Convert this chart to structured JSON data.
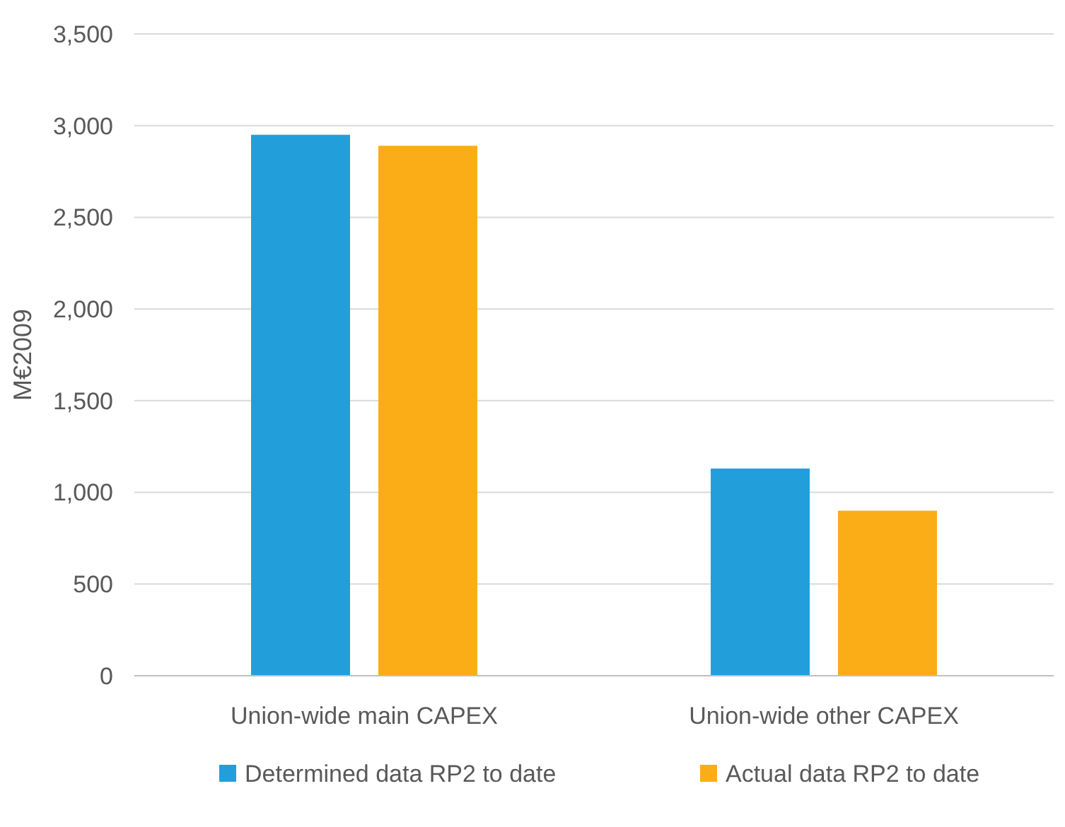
{
  "chart_data": {
    "type": "bar",
    "ylabel": "M€2009",
    "categories": [
      "Union-wide main CAPEX",
      "Union-wide other CAPEX"
    ],
    "series": [
      {
        "name": "Determined data RP2 to date",
        "color": "#229fdb",
        "values": [
          2950,
          1130
        ]
      },
      {
        "name": "Actual data RP2 to date",
        "color": "#fbad18",
        "values": [
          2890,
          900
        ]
      }
    ],
    "ylim": [
      0,
      3500
    ],
    "yticks": [
      0,
      {
        "value": 500,
        "label": "500"
      },
      {
        "value": 1000,
        "label": "1,000"
      },
      {
        "value": 1500,
        "label": "1,500"
      },
      {
        "value": 2000,
        "label": "2,000"
      },
      {
        "value": 2500,
        "label": "2,500"
      },
      {
        "value": 3000,
        "label": "3,000"
      },
      {
        "value": 3500,
        "label": "3,500"
      }
    ],
    "grid": "y",
    "legend": "bottom"
  }
}
